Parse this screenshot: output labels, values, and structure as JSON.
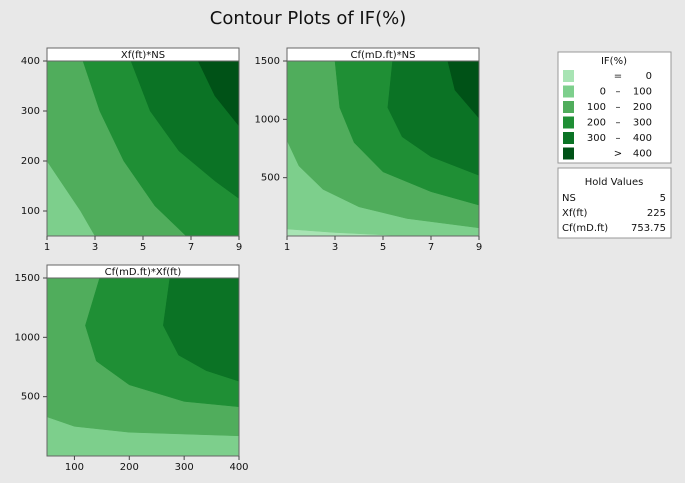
{
  "chart_data": {
    "type": "contour",
    "title": "Contour Plots of IF(%)",
    "panels": [
      {
        "title": "Xf(ft)*NS",
        "xlim": [
          1,
          9
        ],
        "xticks": [
          1,
          3,
          5,
          7,
          9
        ],
        "ylim": [
          50,
          400
        ],
        "yticks": [
          100,
          200,
          300,
          400
        ],
        "contours": [
          {
            "level": 100,
            "x": [
              1,
              1.7,
              2.4,
              3
            ],
            "y": [
              200,
              150,
              100,
              50
            ]
          },
          {
            "level": 200,
            "x": [
              2.5,
              3.2,
              4.2,
              5.5,
              6.8
            ],
            "y": [
              400,
              300,
              200,
              110,
              50
            ]
          },
          {
            "level": 300,
            "x": [
              4.5,
              5.3,
              6.5,
              8,
              9
            ],
            "y": [
              400,
              300,
              220,
              160,
              125
            ]
          },
          {
            "level": 400,
            "x": [
              7.3,
              8,
              9
            ],
            "y": [
              400,
              330,
              270
            ]
          }
        ]
      },
      {
        "title": "Cf(mD.ft)*NS",
        "xlim": [
          1,
          9
        ],
        "xticks": [
          1,
          3,
          5,
          7,
          9
        ],
        "ylim": [
          0,
          1500
        ],
        "yticks": [
          500,
          1000,
          1500
        ],
        "contours": [
          {
            "level": 0,
            "x": [
              1,
              3,
              6
            ],
            "y": [
              60,
              30,
              0
            ]
          },
          {
            "level": 100,
            "x": [
              1,
              1.5,
              2.5,
              4,
              6,
              9
            ],
            "y": [
              820,
              600,
              400,
              250,
              150,
              70
            ]
          },
          {
            "level": 200,
            "x": [
              3,
              3.2,
              3.8,
              5,
              7,
              9
            ],
            "y": [
              1500,
              1100,
              800,
              550,
              380,
              265
            ]
          },
          {
            "level": 300,
            "x": [
              5.4,
              5.2,
              5.8,
              7,
              9
            ],
            "y": [
              1500,
              1100,
              850,
              680,
              520
            ]
          },
          {
            "level": 400,
            "x": [
              7.7,
              8,
              9
            ],
            "y": [
              1500,
              1250,
              1010
            ]
          }
        ]
      },
      {
        "title": "Cf(mD.ft)*Xf(ft)",
        "xlim": [
          50,
          400
        ],
        "xticks": [
          100,
          200,
          300,
          400
        ],
        "ylim": [
          0,
          1500
        ],
        "yticks": [
          500,
          1000,
          1500
        ],
        "contours": [
          {
            "level": 100,
            "x": [
              50,
              100,
              200,
              400
            ],
            "y": [
              330,
              250,
              200,
              170
            ]
          },
          {
            "level": 200,
            "x": [
              146,
              120,
              140,
              200,
              300,
              400
            ],
            "y": [
              1500,
              1100,
              800,
              600,
              460,
              415
            ]
          },
          {
            "level": 300,
            "x": [
              274,
              262,
              290,
              340,
              400
            ],
            "y": [
              1500,
              1100,
              850,
              720,
              630
            ]
          }
        ]
      }
    ],
    "legend": {
      "title": "IF(%)",
      "entries": [
        {
          "op": "=",
          "high": 0,
          "color": "#a8e4b4"
        },
        {
          "low": 0,
          "op": "–",
          "high": 100,
          "color": "#7dcf8c"
        },
        {
          "low": 100,
          "op": "–",
          "high": 200,
          "color": "#50ad5c"
        },
        {
          "low": 200,
          "op": "–",
          "high": 300,
          "color": "#1f8f35"
        },
        {
          "low": 300,
          "op": "–",
          "high": 400,
          "color": "#0b7325"
        },
        {
          "op": ">",
          "high": 400,
          "color": "#005217"
        }
      ]
    },
    "hold_values": {
      "title": "Hold Values",
      "items": [
        {
          "name": "NS",
          "value": 5
        },
        {
          "name": "Xf(ft)",
          "value": 225
        },
        {
          "name": "Cf(mD.ft)",
          "value": 753.75
        }
      ]
    }
  }
}
